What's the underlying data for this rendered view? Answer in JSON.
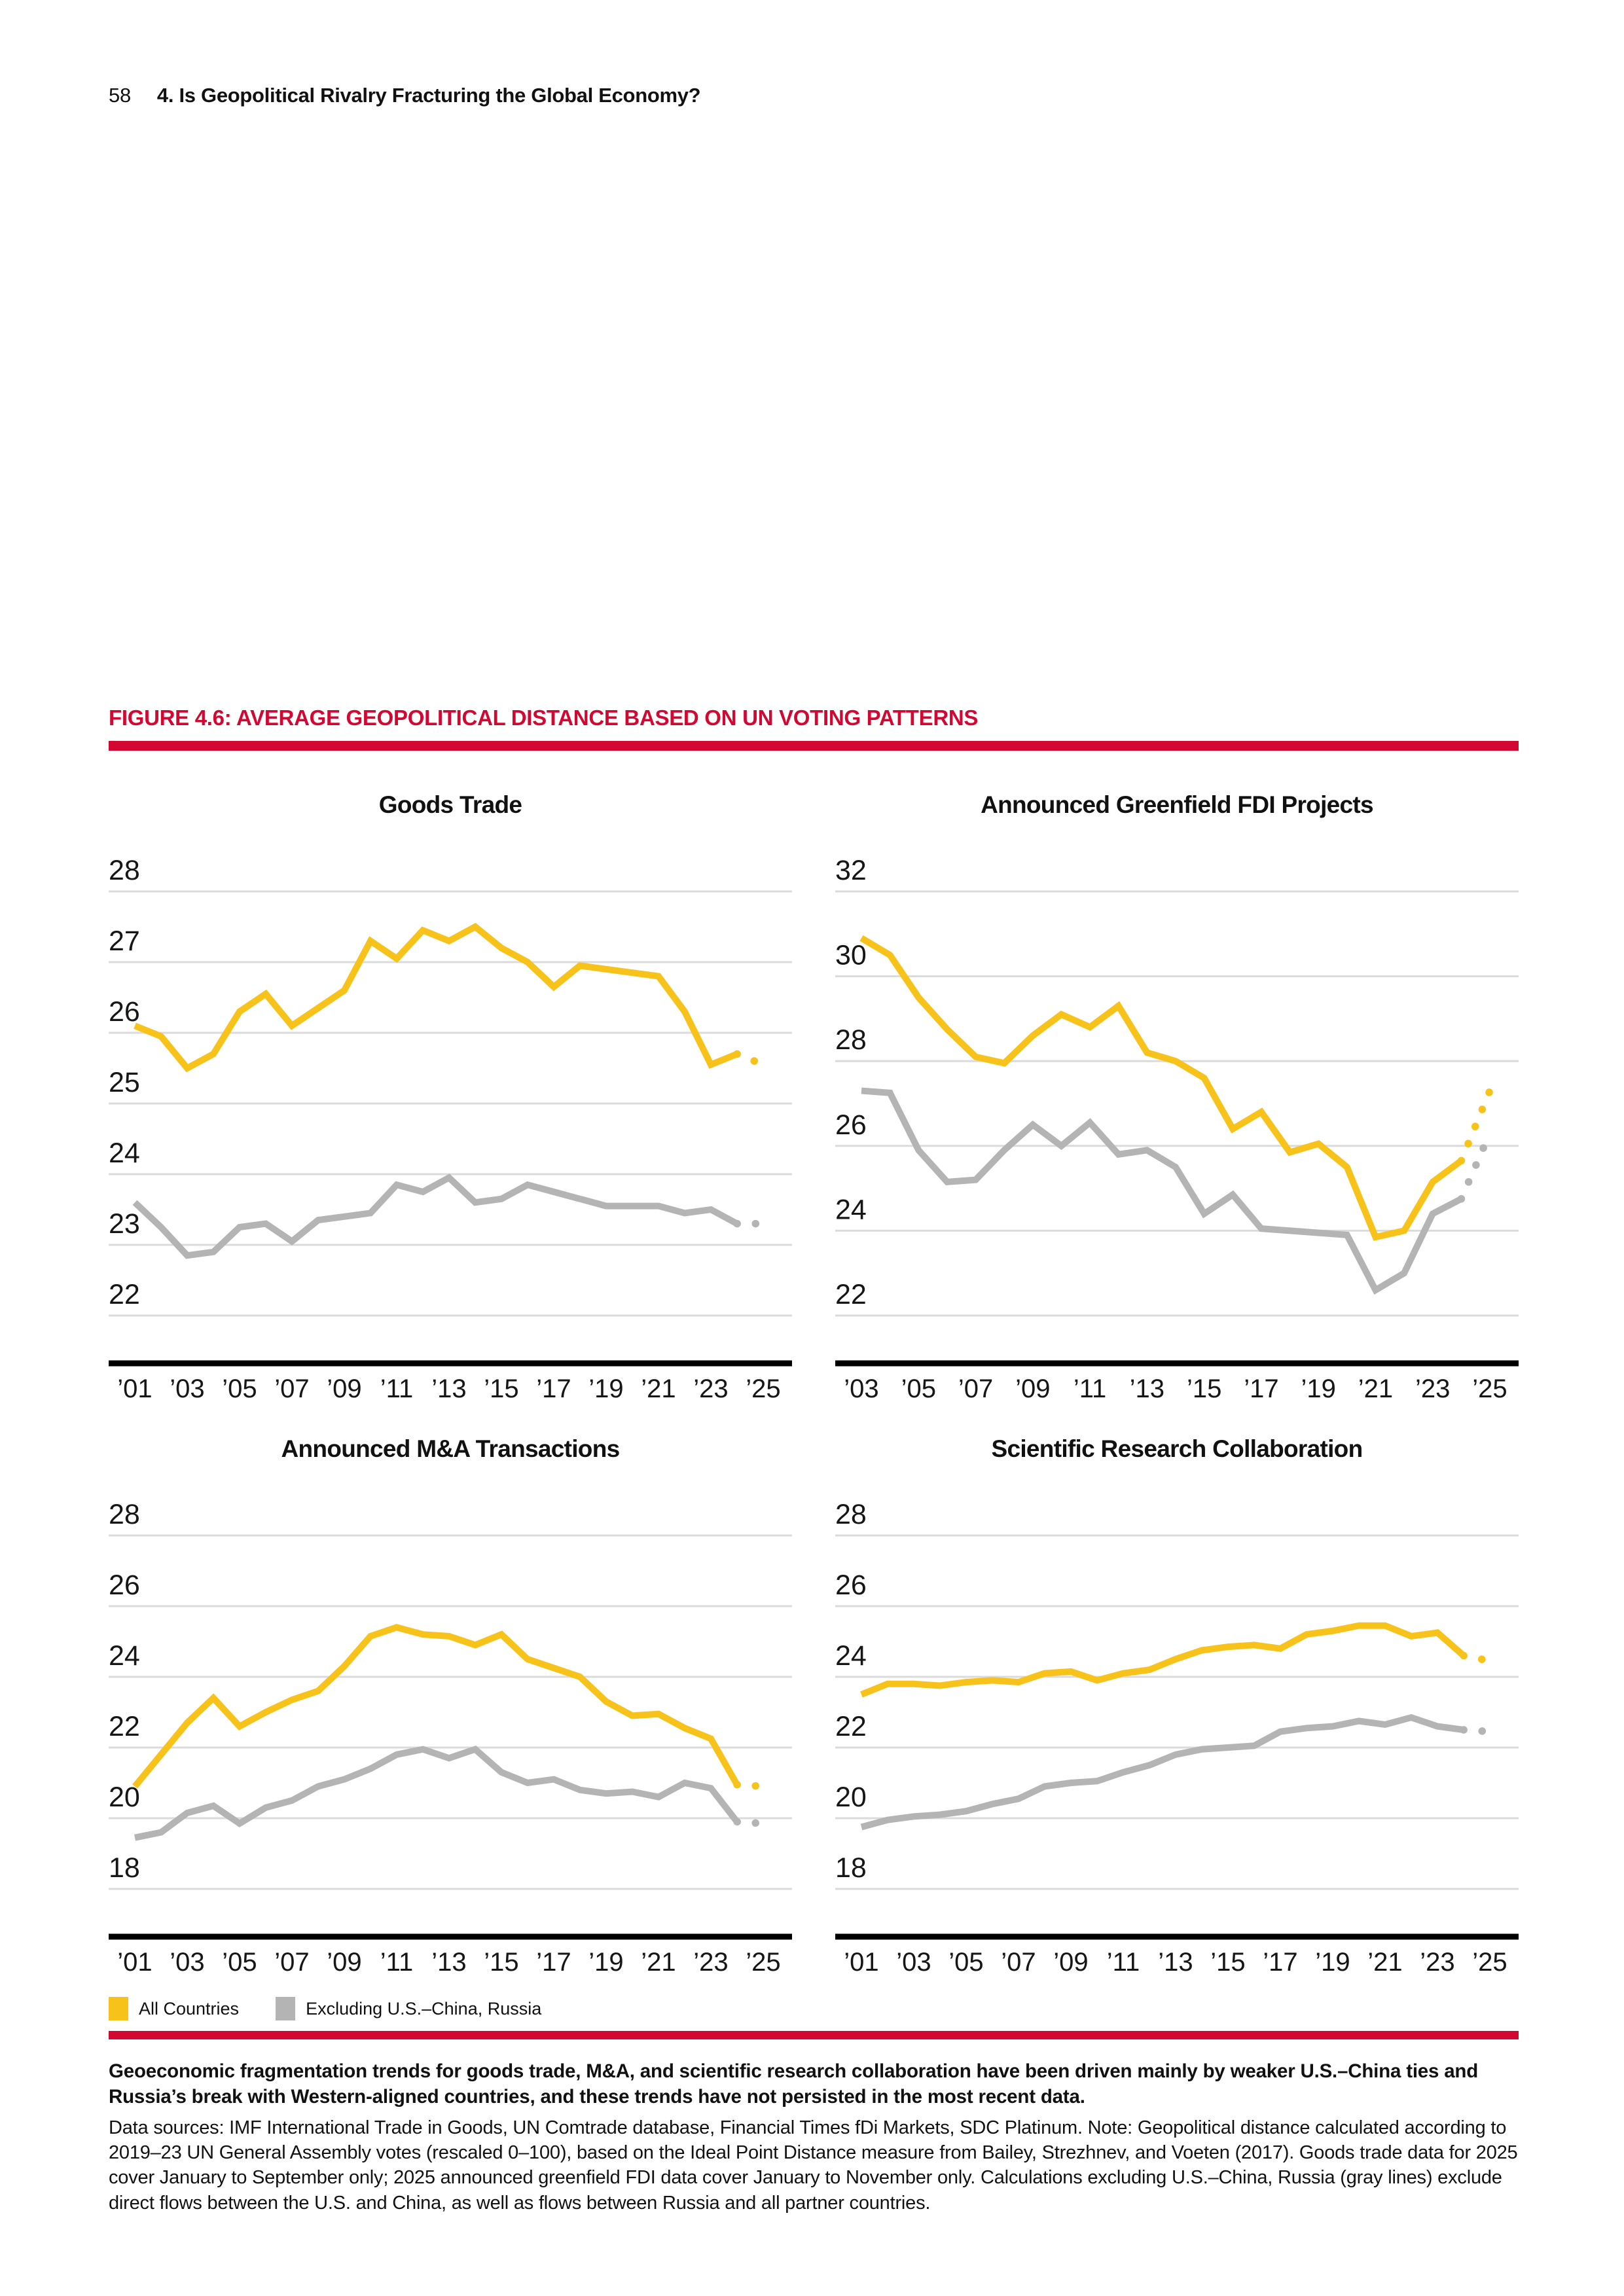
{
  "page": {
    "number": "58",
    "chapter_title": "4. Is Geopolitical Rivalry Fracturing the Global Economy?"
  },
  "figure": {
    "label": "FIGURE 4.6: AVERAGE GEOPOLITICAL DISTANCE BASED ON UN VOTING PATTERNS",
    "accent_color": "#D20832"
  },
  "colors": {
    "all_countries": "#F7C31A",
    "excluding": "#B4B4B4",
    "gridline": "#DBDBDB",
    "axis": "#000000",
    "text": "#161616"
  },
  "legend": [
    {
      "label": "All Countries",
      "color": "#F7C31A"
    },
    {
      "label": "Excluding U.S.–China, Russia",
      "color": "#B4B4B4"
    }
  ],
  "caption": {
    "bold_text": "Geoeconomic fragmentation trends for goods trade, M&A, and scientific research collaboration have been driven mainly by weaker U.S.–China ties and Russia’s break with Western-aligned countries, and these trends have not persisted in the most recent data.",
    "note_text": "Data sources: IMF International Trade in Goods, UN Comtrade database, Financial Times fDi Markets, SDC Platinum. Note: Geopolitical distance calculated according to 2019–23 UN General Assembly votes (rescaled 0–100), based on the Ideal Point Distance measure from Bailey, Strezhnev, and Voeten (2017). Goods trade data for 2025 cover January to September only; 2025 announced greenfield FDI data cover January to November only. Calculations excluding U.S.–China, Russia (gray lines) exclude direct flows between the U.S. and China, as well as flows between Russia and all partner countries."
  },
  "chart_data": [
    {
      "type": "line",
      "title": "Goods Trade",
      "ylim": [
        22,
        28
      ],
      "yticks": [
        28,
        27,
        26,
        25,
        24,
        23,
        22
      ],
      "grid": true,
      "years": [
        2001,
        2002,
        2003,
        2004,
        2005,
        2006,
        2007,
        2008,
        2009,
        2010,
        2011,
        2012,
        2013,
        2014,
        2015,
        2016,
        2017,
        2018,
        2019,
        2020,
        2021,
        2022,
        2023,
        2024,
        2025
      ],
      "xtick_labels": [
        "’01",
        "’03",
        "’05",
        "’07",
        "’09",
        "’11",
        "’13",
        "’15",
        "’17",
        "’19",
        "’21",
        "’23",
        "’25"
      ],
      "series": [
        {
          "name": "All Countries",
          "color": "#F7C31A",
          "dotted_from": 23,
          "values": [
            26.1,
            25.95,
            25.5,
            25.7,
            26.3,
            26.55,
            26.1,
            26.35,
            26.6,
            27.3,
            27.05,
            27.45,
            27.3,
            27.5,
            27.2,
            27.0,
            26.65,
            26.95,
            26.9,
            26.85,
            26.8,
            26.3,
            25.55,
            25.7,
            25.55
          ]
        },
        {
          "name": "Excluding U.S.–China, Russia",
          "color": "#B4B4B4",
          "dotted_from": 23,
          "values": [
            23.6,
            23.25,
            22.85,
            22.9,
            23.25,
            23.3,
            23.05,
            23.35,
            23.4,
            23.45,
            23.85,
            23.75,
            23.95,
            23.6,
            23.65,
            23.85,
            23.75,
            23.65,
            23.55,
            23.55,
            23.55,
            23.45,
            23.5,
            23.3,
            23.3
          ]
        }
      ]
    },
    {
      "type": "line",
      "title": "Announced Greenfield FDI Projects",
      "ylim": [
        22,
        32
      ],
      "yticks": [
        32,
        30,
        28,
        26,
        24,
        22
      ],
      "grid": true,
      "years": [
        2003,
        2004,
        2005,
        2006,
        2007,
        2008,
        2009,
        2010,
        2011,
        2012,
        2013,
        2014,
        2015,
        2016,
        2017,
        2018,
        2019,
        2020,
        2021,
        2022,
        2023,
        2024,
        2025
      ],
      "xtick_labels": [
        "’03",
        "’05",
        "’07",
        "’09",
        "’11",
        "’13",
        "’15",
        "’17",
        "’19",
        "’21",
        "’23",
        "’25"
      ],
      "series": [
        {
          "name": "All Countries",
          "color": "#F7C31A",
          "dotted_from": 21,
          "values": [
            30.9,
            30.5,
            29.5,
            28.75,
            28.1,
            27.95,
            28.6,
            29.1,
            28.8,
            29.3,
            28.2,
            28.0,
            27.6,
            26.4,
            26.8,
            25.85,
            26.05,
            25.5,
            23.85,
            24.0,
            25.15,
            25.65,
            27.3
          ]
        },
        {
          "name": "Excluding U.S.–China, Russia",
          "color": "#B4B4B4",
          "dotted_from": 21,
          "values": [
            27.3,
            27.25,
            25.9,
            25.15,
            25.2,
            25.9,
            26.5,
            26.0,
            26.55,
            25.8,
            25.9,
            25.5,
            24.4,
            24.85,
            24.05,
            24.0,
            23.95,
            23.9,
            22.6,
            23.0,
            24.4,
            24.75,
            26.3
          ]
        }
      ]
    },
    {
      "type": "line",
      "title": "Announced M&A Transactions",
      "ylim": [
        18,
        28
      ],
      "yticks": [
        28,
        26,
        24,
        22,
        20,
        18
      ],
      "grid": true,
      "years": [
        2001,
        2002,
        2003,
        2004,
        2005,
        2006,
        2007,
        2008,
        2009,
        2010,
        2011,
        2012,
        2013,
        2014,
        2015,
        2016,
        2017,
        2018,
        2019,
        2020,
        2021,
        2022,
        2023,
        2024,
        2025
      ],
      "xtick_labels": [
        "’01",
        "’03",
        "’05",
        "’07",
        "’09",
        "’11",
        "’13",
        "’15",
        "’17",
        "’19",
        "’21",
        "’23",
        "’25"
      ],
      "series": [
        {
          "name": "All Countries",
          "color": "#F7C31A",
          "dotted_from": 23,
          "values": [
            20.9,
            21.8,
            22.7,
            23.4,
            22.6,
            23.0,
            23.35,
            23.6,
            24.3,
            25.15,
            25.4,
            25.2,
            25.15,
            24.9,
            25.2,
            24.5,
            24.25,
            24.0,
            23.3,
            22.9,
            22.95,
            22.55,
            22.25,
            20.95,
            20.9
          ]
        },
        {
          "name": "Excluding U.S.–China, Russia",
          "color": "#B4B4B4",
          "dotted_from": 23,
          "values": [
            19.45,
            19.6,
            20.15,
            20.35,
            19.85,
            20.3,
            20.5,
            20.9,
            21.1,
            21.4,
            21.8,
            21.95,
            21.7,
            21.95,
            21.3,
            21.0,
            21.1,
            20.8,
            20.7,
            20.75,
            20.6,
            21.0,
            20.85,
            19.9,
            19.85
          ]
        }
      ]
    },
    {
      "type": "line",
      "title": "Scientific Research Collaboration",
      "ylim": [
        18,
        28
      ],
      "yticks": [
        28,
        26,
        24,
        22,
        20,
        18
      ],
      "grid": true,
      "years": [
        2001,
        2002,
        2003,
        2004,
        2005,
        2006,
        2007,
        2008,
        2009,
        2010,
        2011,
        2012,
        2013,
        2014,
        2015,
        2016,
        2017,
        2018,
        2019,
        2020,
        2021,
        2022,
        2023,
        2024,
        2025
      ],
      "xtick_labels": [
        "’01",
        "’03",
        "’05",
        "’07",
        "’09",
        "’11",
        "’13",
        "’15",
        "’17",
        "’19",
        "’21",
        "’23",
        "’25"
      ],
      "series": [
        {
          "name": "All Countries",
          "color": "#F7C31A",
          "dotted_from": 23,
          "values": [
            23.5,
            23.8,
            23.8,
            23.75,
            23.85,
            23.9,
            23.85,
            24.1,
            24.15,
            23.9,
            24.1,
            24.2,
            24.5,
            24.75,
            24.85,
            24.9,
            24.8,
            25.2,
            25.3,
            25.45,
            25.45,
            25.15,
            25.25,
            24.6,
            24.45
          ]
        },
        {
          "name": "Excluding U.S.–China, Russia",
          "color": "#B4B4B4",
          "dotted_from": 23,
          "values": [
            19.75,
            19.95,
            20.05,
            20.1,
            20.2,
            20.4,
            20.55,
            20.9,
            21.0,
            21.05,
            21.3,
            21.5,
            21.8,
            21.95,
            22.0,
            22.05,
            22.45,
            22.55,
            22.6,
            22.75,
            22.65,
            22.85,
            22.6,
            22.5,
            22.45
          ]
        }
      ]
    }
  ]
}
